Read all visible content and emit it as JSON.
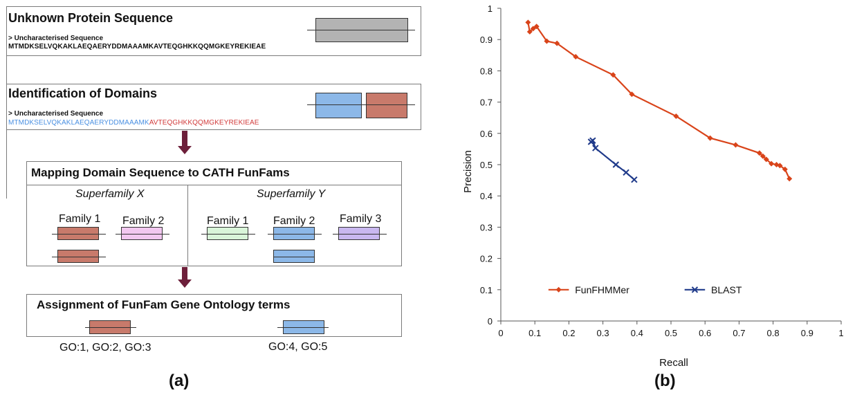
{
  "panel_a": {
    "label": "(a)",
    "unknown": {
      "title": "Unknown Protein Sequence",
      "seq_label": "> Uncharacterised Sequence",
      "sequence": "MTMDKSELVQKAKLAEQAERYDDMAAAMKAVTEQGHKKQQMGKEYREKIEAE"
    },
    "identification": {
      "title": "Identification of Domains",
      "seq_label": "> Uncharacterised Sequence",
      "sequence_blue": "MTMDKSELVQKAKLAEQAERYDDMAAAMK",
      "sequence_red": "AVTEQGHKKQQMGKEYREKIEAE"
    },
    "mapping": {
      "title": "Mapping Domain Sequence to CATH FunFams",
      "superfamily_x": "Superfamily X",
      "superfamily_y": "Superfamily Y",
      "families_x": [
        "Family 1",
        "Family 2"
      ],
      "families_y": [
        "Family 1",
        "Family 2",
        "Family 3"
      ]
    },
    "assignment": {
      "title": "Assignment of FunFam Gene Ontology terms",
      "go_left": "GO:1, GO:2,  GO:3",
      "go_right": "GO:4,  GO:5"
    },
    "colors": {
      "gray": "#b3b3b3",
      "blue": "#8cb8e8",
      "red": "#c87a6b",
      "pink": "#f2c8f0",
      "green": "#d9f5d9",
      "purple": "#c9b8f0",
      "arrow": "#6d1f3a"
    }
  },
  "panel_b": {
    "label": "(b)"
  },
  "chart_data": {
    "type": "line",
    "xlabel": "Recall",
    "ylabel": "Precision",
    "xlim": [
      0,
      1
    ],
    "ylim": [
      0,
      1
    ],
    "x_ticks": [
      "0",
      "0.1",
      "0.2",
      "0.3",
      "0.4",
      "0.5",
      "0.6",
      "0.7",
      "0.8",
      "0.9",
      "1"
    ],
    "y_ticks": [
      "0",
      "0.1",
      "0.2",
      "0.3",
      "0.4",
      "0.5",
      "0.6",
      "0.7",
      "0.8",
      "0.9",
      "1"
    ],
    "legend_placement": "lower-left",
    "grid": false,
    "series": [
      {
        "name": "FunFHMMer",
        "color": "#d9441a",
        "marker": "diamond",
        "points": [
          [
            0.08,
            0.955
          ],
          [
            0.085,
            0.925
          ],
          [
            0.095,
            0.935
          ],
          [
            0.105,
            0.942
          ],
          [
            0.135,
            0.895
          ],
          [
            0.165,
            0.888
          ],
          [
            0.22,
            0.845
          ],
          [
            0.33,
            0.787
          ],
          [
            0.385,
            0.725
          ],
          [
            0.515,
            0.655
          ],
          [
            0.615,
            0.585
          ],
          [
            0.69,
            0.563
          ],
          [
            0.76,
            0.537
          ],
          [
            0.77,
            0.527
          ],
          [
            0.78,
            0.517
          ],
          [
            0.795,
            0.503
          ],
          [
            0.81,
            0.5
          ],
          [
            0.82,
            0.497
          ],
          [
            0.835,
            0.485
          ],
          [
            0.848,
            0.455
          ]
        ]
      },
      {
        "name": "BLAST",
        "color": "#1f3a8a",
        "marker": "x",
        "points": [
          [
            0.265,
            0.573
          ],
          [
            0.27,
            0.577
          ],
          [
            0.278,
            0.553
          ],
          [
            0.338,
            0.5
          ],
          [
            0.368,
            0.475
          ],
          [
            0.392,
            0.452
          ]
        ]
      }
    ]
  }
}
